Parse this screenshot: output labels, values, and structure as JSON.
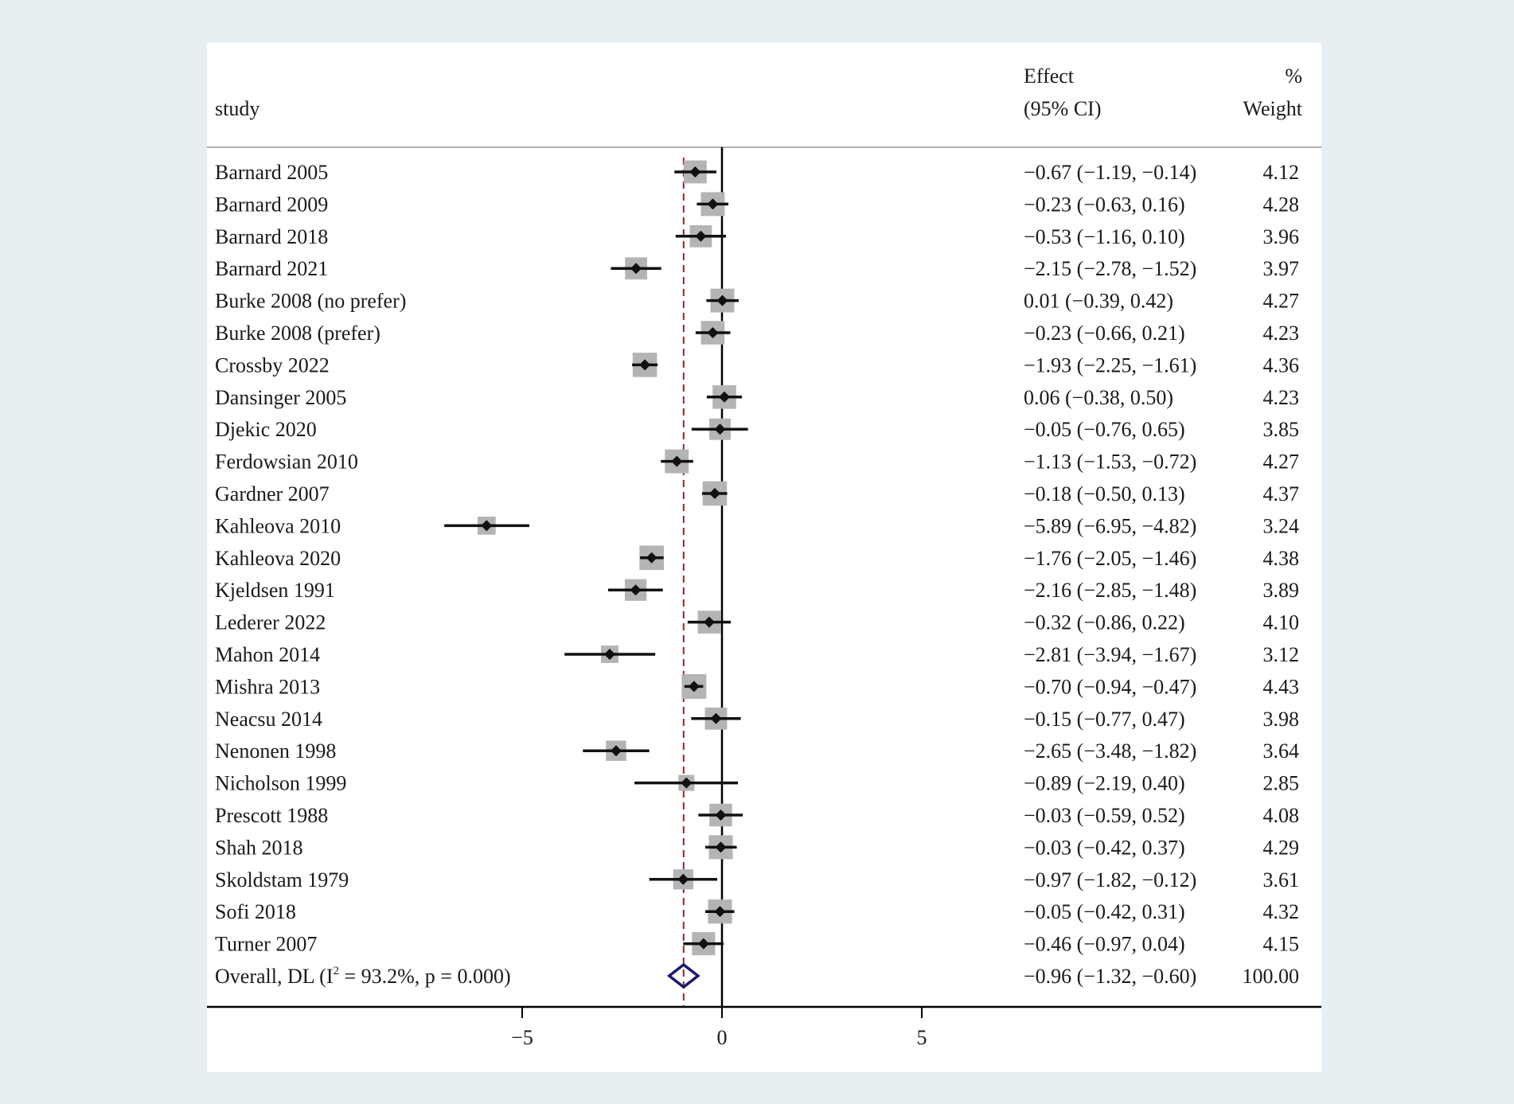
{
  "chart_data": {
    "type": "forest",
    "headers": {
      "study": "study",
      "effect_line1": "Effect",
      "effect_line2": "(95% CI)",
      "weight_line1": "%",
      "weight_line2": "Weight"
    },
    "xaxis": {
      "ticks": [
        -5,
        0,
        5
      ],
      "tick_labels": [
        "−5",
        "0",
        "5"
      ],
      "range": [
        -13,
        8
      ]
    },
    "reference_line": 0,
    "overall_line": -0.96,
    "studies": [
      {
        "label": "Barnard 2005",
        "effect": -0.67,
        "lo": -1.19,
        "hi": -0.14,
        "weight": 4.12,
        "ci_text": "−0.67 (−1.19, −0.14)",
        "weight_text": "4.12"
      },
      {
        "label": "Barnard 2009",
        "effect": -0.23,
        "lo": -0.63,
        "hi": 0.16,
        "weight": 4.28,
        "ci_text": "−0.23 (−0.63, 0.16)",
        "weight_text": "4.28"
      },
      {
        "label": "Barnard 2018",
        "effect": -0.53,
        "lo": -1.16,
        "hi": 0.1,
        "weight": 3.96,
        "ci_text": "−0.53 (−1.16, 0.10)",
        "weight_text": "3.96"
      },
      {
        "label": "Barnard 2021",
        "effect": -2.15,
        "lo": -2.78,
        "hi": -1.52,
        "weight": 3.97,
        "ci_text": "−2.15 (−2.78, −1.52)",
        "weight_text": "3.97"
      },
      {
        "label": "Burke 2008 (no prefer)",
        "effect": 0.01,
        "lo": -0.39,
        "hi": 0.42,
        "weight": 4.27,
        "ci_text": "0.01 (−0.39, 0.42)",
        "weight_text": "4.27"
      },
      {
        "label": "Burke 2008 (prefer)",
        "effect": -0.23,
        "lo": -0.66,
        "hi": 0.21,
        "weight": 4.23,
        "ci_text": "−0.23 (−0.66, 0.21)",
        "weight_text": "4.23"
      },
      {
        "label": "Crossby 2022",
        "effect": -1.93,
        "lo": -2.25,
        "hi": -1.61,
        "weight": 4.36,
        "ci_text": "−1.93 (−2.25, −1.61)",
        "weight_text": "4.36"
      },
      {
        "label": "Dansinger 2005",
        "effect": 0.06,
        "lo": -0.38,
        "hi": 0.5,
        "weight": 4.23,
        "ci_text": "0.06 (−0.38, 0.50)",
        "weight_text": "4.23"
      },
      {
        "label": "Djekic 2020",
        "effect": -0.05,
        "lo": -0.76,
        "hi": 0.65,
        "weight": 3.85,
        "ci_text": "−0.05 (−0.76, 0.65)",
        "weight_text": "3.85"
      },
      {
        "label": "Ferdowsian 2010",
        "effect": -1.13,
        "lo": -1.53,
        "hi": -0.72,
        "weight": 4.27,
        "ci_text": "−1.13 (−1.53, −0.72)",
        "weight_text": "4.27"
      },
      {
        "label": "Gardner 2007",
        "effect": -0.18,
        "lo": -0.5,
        "hi": 0.13,
        "weight": 4.37,
        "ci_text": "−0.18 (−0.50, 0.13)",
        "weight_text": "4.37"
      },
      {
        "label": "Kahleova 2010",
        "effect": -5.89,
        "lo": -6.95,
        "hi": -4.82,
        "weight": 3.24,
        "ci_text": "−5.89 (−6.95, −4.82)",
        "weight_text": "3.24"
      },
      {
        "label": "Kahleova 2020",
        "effect": -1.76,
        "lo": -2.05,
        "hi": -1.46,
        "weight": 4.38,
        "ci_text": "−1.76 (−2.05, −1.46)",
        "weight_text": "4.38"
      },
      {
        "label": "Kjeldsen 1991",
        "effect": -2.16,
        "lo": -2.85,
        "hi": -1.48,
        "weight": 3.89,
        "ci_text": "−2.16 (−2.85, −1.48)",
        "weight_text": "3.89"
      },
      {
        "label": "Lederer 2022",
        "effect": -0.32,
        "lo": -0.86,
        "hi": 0.22,
        "weight": 4.1,
        "ci_text": "−0.32 (−0.86, 0.22)",
        "weight_text": "4.10"
      },
      {
        "label": "Mahon 2014",
        "effect": -2.81,
        "lo": -3.94,
        "hi": -1.67,
        "weight": 3.12,
        "ci_text": "−2.81 (−3.94, −1.67)",
        "weight_text": "3.12"
      },
      {
        "label": "Mishra 2013",
        "effect": -0.7,
        "lo": -0.94,
        "hi": -0.47,
        "weight": 4.43,
        "ci_text": "−0.70 (−0.94, −0.47)",
        "weight_text": "4.43"
      },
      {
        "label": "Neacsu 2014",
        "effect": -0.15,
        "lo": -0.77,
        "hi": 0.47,
        "weight": 3.98,
        "ci_text": "−0.15 (−0.77, 0.47)",
        "weight_text": "3.98"
      },
      {
        "label": "Nenonen 1998",
        "effect": -2.65,
        "lo": -3.48,
        "hi": -1.82,
        "weight": 3.64,
        "ci_text": "−2.65 (−3.48, −1.82)",
        "weight_text": "3.64"
      },
      {
        "label": "Nicholson 1999",
        "effect": -0.89,
        "lo": -2.19,
        "hi": 0.4,
        "weight": 2.85,
        "ci_text": "−0.89 (−2.19, 0.40)",
        "weight_text": "2.85"
      },
      {
        "label": "Prescott 1988",
        "effect": -0.03,
        "lo": -0.59,
        "hi": 0.52,
        "weight": 4.08,
        "ci_text": "−0.03 (−0.59, 0.52)",
        "weight_text": "4.08"
      },
      {
        "label": "Shah 2018",
        "effect": -0.03,
        "lo": -0.42,
        "hi": 0.37,
        "weight": 4.29,
        "ci_text": "−0.03 (−0.42, 0.37)",
        "weight_text": "4.29"
      },
      {
        "label": "Skoldstam 1979",
        "effect": -0.97,
        "lo": -1.82,
        "hi": -0.12,
        "weight": 3.61,
        "ci_text": "−0.97 (−1.82, −0.12)",
        "weight_text": "3.61"
      },
      {
        "label": "Sofi 2018",
        "effect": -0.05,
        "lo": -0.42,
        "hi": 0.31,
        "weight": 4.32,
        "ci_text": "−0.05 (−0.42, 0.31)",
        "weight_text": "4.32"
      },
      {
        "label": "Turner 2007",
        "effect": -0.46,
        "lo": -0.97,
        "hi": 0.04,
        "weight": 4.15,
        "ci_text": "−0.46 (−0.97, 0.04)",
        "weight_text": "4.15"
      }
    ],
    "overall": {
      "label_prefix": "Overall, DL (I",
      "label_sup": "2",
      "label_suffix": " = 93.2%, p = 0.000)",
      "effect": -0.96,
      "lo": -1.32,
      "hi": -0.6,
      "ci_text": "−0.96 (−1.32, −0.60)",
      "weight_text": "100.00"
    },
    "colors": {
      "background": "#e8eff2",
      "panel": "#ffffff",
      "point": "#111111",
      "weight_box": "#b4b4b4",
      "overall_diamond": "#1a1a6e",
      "overall_line": "#8b2a2a",
      "axis": "#000000"
    }
  }
}
